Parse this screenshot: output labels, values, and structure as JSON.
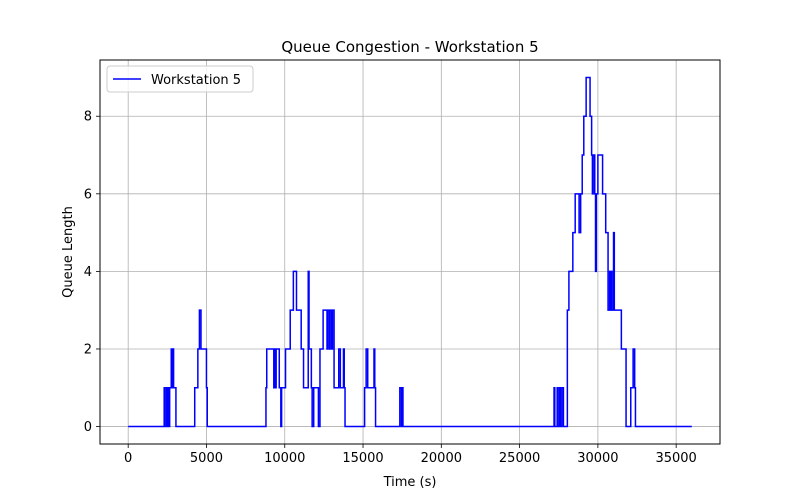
{
  "chart_data": {
    "type": "line",
    "title": "Queue Congestion - Workstation 5",
    "xlabel": "Time (s)",
    "ylabel": "Queue Length",
    "xlim": [
      -1800,
      37800
    ],
    "ylim": [
      -0.45,
      9.45
    ],
    "x_ticks": [
      0,
      5000,
      10000,
      15000,
      20000,
      25000,
      30000,
      35000
    ],
    "y_ticks": [
      0,
      2,
      4,
      6,
      8
    ],
    "grid": true,
    "legend": {
      "position": "top-left",
      "entries": [
        "Workstation 5"
      ]
    },
    "series": [
      {
        "name": "Workstation 5",
        "color": "#0000ff",
        "step": "post",
        "points": [
          [
            0,
            0
          ],
          [
            2300,
            0
          ],
          [
            2300,
            1
          ],
          [
            2350,
            1
          ],
          [
            2350,
            0
          ],
          [
            2450,
            0
          ],
          [
            2450,
            1
          ],
          [
            2500,
            1
          ],
          [
            2500,
            0
          ],
          [
            2550,
            0
          ],
          [
            2550,
            1
          ],
          [
            2600,
            1
          ],
          [
            2600,
            0
          ],
          [
            2650,
            0
          ],
          [
            2650,
            1
          ],
          [
            2750,
            1
          ],
          [
            2750,
            2
          ],
          [
            2800,
            2
          ],
          [
            2800,
            1
          ],
          [
            2850,
            1
          ],
          [
            2850,
            2
          ],
          [
            2900,
            2
          ],
          [
            2900,
            1
          ],
          [
            3050,
            1
          ],
          [
            3050,
            0
          ],
          [
            4250,
            0
          ],
          [
            4250,
            1
          ],
          [
            4450,
            1
          ],
          [
            4450,
            2
          ],
          [
            4550,
            2
          ],
          [
            4550,
            3
          ],
          [
            4650,
            3
          ],
          [
            4650,
            2
          ],
          [
            5000,
            2
          ],
          [
            5000,
            1
          ],
          [
            5050,
            1
          ],
          [
            5050,
            0
          ],
          [
            8800,
            0
          ],
          [
            8800,
            1
          ],
          [
            8850,
            1
          ],
          [
            8850,
            2
          ],
          [
            9300,
            2
          ],
          [
            9300,
            1
          ],
          [
            9350,
            1
          ],
          [
            9350,
            2
          ],
          [
            9400,
            2
          ],
          [
            9400,
            1
          ],
          [
            9450,
            1
          ],
          [
            9450,
            2
          ],
          [
            9650,
            2
          ],
          [
            9650,
            1
          ],
          [
            9750,
            1
          ],
          [
            9750,
            0
          ],
          [
            9800,
            0
          ],
          [
            9800,
            1
          ],
          [
            10050,
            1
          ],
          [
            10050,
            2
          ],
          [
            10350,
            2
          ],
          [
            10350,
            3
          ],
          [
            10550,
            3
          ],
          [
            10550,
            4
          ],
          [
            10750,
            4
          ],
          [
            10750,
            3
          ],
          [
            11050,
            3
          ],
          [
            11050,
            2
          ],
          [
            11200,
            2
          ],
          [
            11200,
            1
          ],
          [
            11500,
            1
          ],
          [
            11500,
            4
          ],
          [
            11550,
            4
          ],
          [
            11550,
            2
          ],
          [
            11700,
            2
          ],
          [
            11700,
            1
          ],
          [
            11750,
            1
          ],
          [
            11750,
            0
          ],
          [
            11850,
            0
          ],
          [
            11850,
            1
          ],
          [
            12150,
            1
          ],
          [
            12150,
            0
          ],
          [
            12250,
            0
          ],
          [
            12250,
            2
          ],
          [
            12450,
            2
          ],
          [
            12450,
            3
          ],
          [
            12700,
            3
          ],
          [
            12700,
            2
          ],
          [
            12750,
            2
          ],
          [
            12750,
            3
          ],
          [
            12850,
            3
          ],
          [
            12850,
            2
          ],
          [
            12900,
            2
          ],
          [
            12900,
            3
          ],
          [
            13000,
            3
          ],
          [
            13000,
            2
          ],
          [
            13050,
            2
          ],
          [
            13050,
            3
          ],
          [
            13150,
            3
          ],
          [
            13150,
            1
          ],
          [
            13450,
            1
          ],
          [
            13450,
            2
          ],
          [
            13550,
            2
          ],
          [
            13550,
            1
          ],
          [
            13750,
            1
          ],
          [
            13750,
            2
          ],
          [
            13800,
            2
          ],
          [
            13800,
            1
          ],
          [
            13850,
            1
          ],
          [
            13850,
            0
          ],
          [
            15100,
            0
          ],
          [
            15100,
            1
          ],
          [
            15200,
            1
          ],
          [
            15200,
            2
          ],
          [
            15300,
            2
          ],
          [
            15300,
            1
          ],
          [
            15700,
            1
          ],
          [
            15700,
            2
          ],
          [
            15750,
            2
          ],
          [
            15750,
            1
          ],
          [
            15800,
            1
          ],
          [
            15800,
            0
          ],
          [
            17350,
            0
          ],
          [
            17350,
            1
          ],
          [
            17450,
            1
          ],
          [
            17450,
            0
          ],
          [
            17500,
            0
          ],
          [
            17500,
            1
          ],
          [
            17550,
            1
          ],
          [
            17550,
            0
          ],
          [
            27200,
            0
          ],
          [
            27200,
            1
          ],
          [
            27250,
            1
          ],
          [
            27250,
            0
          ],
          [
            27400,
            0
          ],
          [
            27400,
            1
          ],
          [
            27450,
            1
          ],
          [
            27450,
            0
          ],
          [
            27550,
            0
          ],
          [
            27550,
            1
          ],
          [
            27600,
            1
          ],
          [
            27600,
            0
          ],
          [
            27700,
            0
          ],
          [
            27700,
            1
          ],
          [
            27800,
            1
          ],
          [
            27800,
            0
          ],
          [
            28050,
            0
          ],
          [
            28050,
            3
          ],
          [
            28150,
            3
          ],
          [
            28150,
            4
          ],
          [
            28400,
            4
          ],
          [
            28400,
            5
          ],
          [
            28550,
            5
          ],
          [
            28550,
            6
          ],
          [
            28800,
            6
          ],
          [
            28800,
            5
          ],
          [
            28900,
            5
          ],
          [
            28900,
            6
          ],
          [
            29000,
            6
          ],
          [
            29000,
            7
          ],
          [
            29100,
            7
          ],
          [
            29100,
            8
          ],
          [
            29250,
            8
          ],
          [
            29250,
            9
          ],
          [
            29500,
            9
          ],
          [
            29500,
            8
          ],
          [
            29600,
            8
          ],
          [
            29600,
            7
          ],
          [
            29650,
            7
          ],
          [
            29650,
            6
          ],
          [
            29700,
            6
          ],
          [
            29700,
            7
          ],
          [
            29800,
            7
          ],
          [
            29800,
            6
          ],
          [
            29850,
            6
          ],
          [
            29850,
            4
          ],
          [
            29900,
            4
          ],
          [
            29900,
            6
          ],
          [
            30000,
            6
          ],
          [
            30000,
            7
          ],
          [
            30300,
            7
          ],
          [
            30300,
            6
          ],
          [
            30500,
            6
          ],
          [
            30500,
            5
          ],
          [
            30650,
            5
          ],
          [
            30650,
            3
          ],
          [
            30750,
            3
          ],
          [
            30750,
            4
          ],
          [
            30800,
            4
          ],
          [
            30800,
            3
          ],
          [
            30850,
            3
          ],
          [
            30850,
            4
          ],
          [
            30900,
            4
          ],
          [
            30900,
            3
          ],
          [
            31000,
            3
          ],
          [
            31000,
            5
          ],
          [
            31050,
            5
          ],
          [
            31050,
            3
          ],
          [
            31500,
            3
          ],
          [
            31500,
            2
          ],
          [
            31800,
            2
          ],
          [
            31800,
            0
          ],
          [
            32100,
            0
          ],
          [
            32100,
            1
          ],
          [
            32250,
            1
          ],
          [
            32250,
            2
          ],
          [
            32350,
            2
          ],
          [
            32350,
            1
          ],
          [
            32400,
            1
          ],
          [
            32400,
            0
          ],
          [
            36000,
            0
          ]
        ]
      }
    ]
  }
}
